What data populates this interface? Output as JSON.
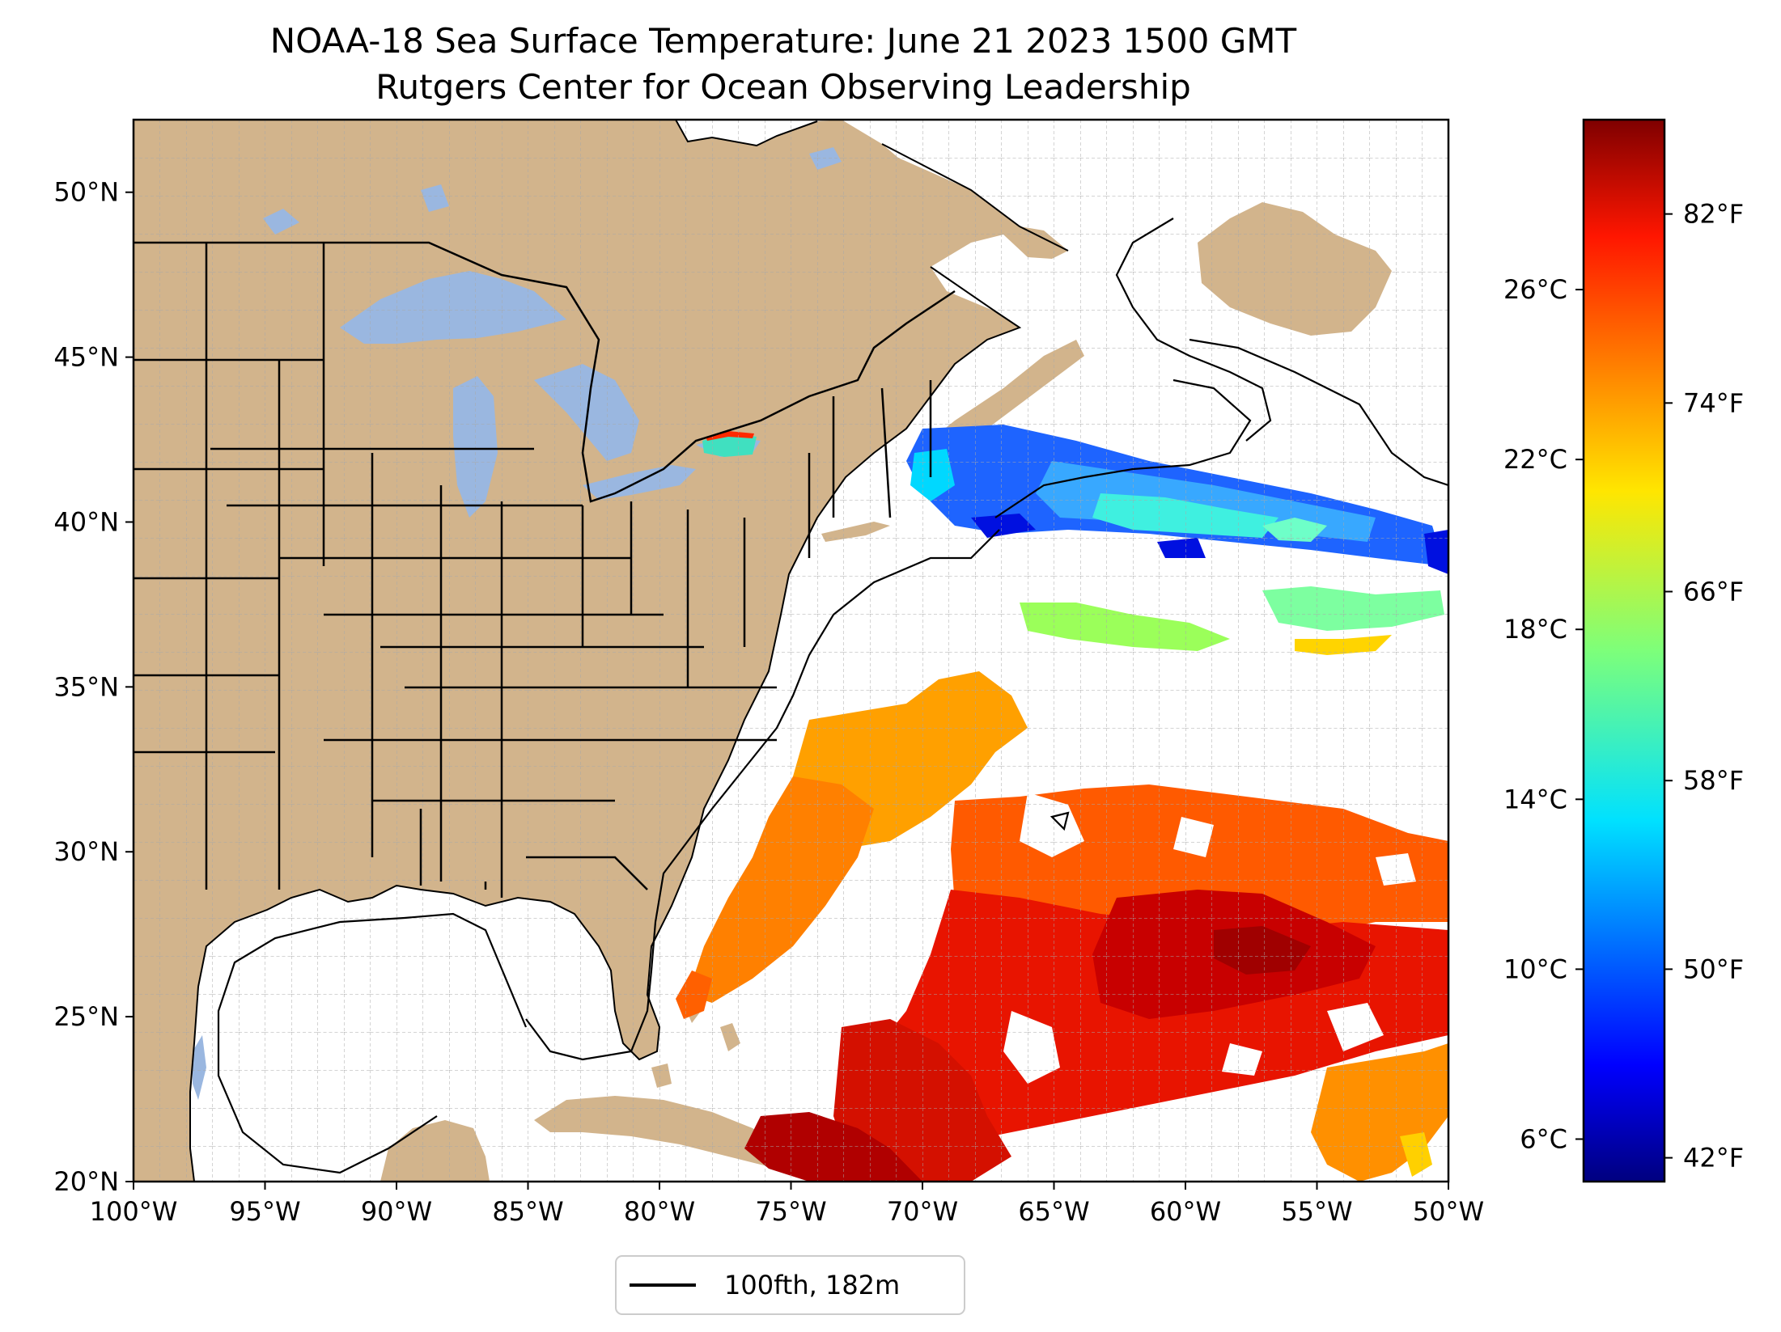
{
  "title": {
    "line1": "NOAA-18 Sea Surface Temperature: June 21 2023 1500 GMT",
    "line2": "Rutgers Center for Ocean Observing Leadership"
  },
  "map": {
    "lon_range": [
      -100,
      -50
    ],
    "lat_range": [
      20,
      52.2
    ],
    "lon_ticks": [
      {
        "value": -100,
        "label": "100°W"
      },
      {
        "value": -95,
        "label": "95°W"
      },
      {
        "value": -90,
        "label": "90°W"
      },
      {
        "value": -85,
        "label": "85°W"
      },
      {
        "value": -80,
        "label": "80°W"
      },
      {
        "value": -75,
        "label": "75°W"
      },
      {
        "value": -70,
        "label": "70°W"
      },
      {
        "value": -65,
        "label": "65°W"
      },
      {
        "value": -60,
        "label": "60°W"
      },
      {
        "value": -55,
        "label": "55°W"
      },
      {
        "value": -50,
        "label": "50°W"
      }
    ],
    "lat_ticks": [
      {
        "value": 20,
        "label": "20°N"
      },
      {
        "value": 25,
        "label": "25°N"
      },
      {
        "value": 30,
        "label": "30°N"
      },
      {
        "value": 35,
        "label": "35°N"
      },
      {
        "value": 40,
        "label": "40°N"
      },
      {
        "value": 45,
        "label": "45°N"
      },
      {
        "value": 50,
        "label": "50°N"
      }
    ],
    "gridlines": "dashed, every 1 degree",
    "colors": {
      "land": "#d2b48c",
      "lakes": "#9ab7e0",
      "no_data": "#ffffff",
      "borders": "#000000"
    }
  },
  "legend": {
    "label": "100fth, 182m",
    "placement": "bottom-center"
  },
  "colorbar": {
    "colormap": "jet",
    "range_c": [
      5,
      30
    ],
    "celsius_ticks": [
      {
        "value": 6,
        "label": "6°C"
      },
      {
        "value": 10,
        "label": "10°C"
      },
      {
        "value": 14,
        "label": "14°C"
      },
      {
        "value": 18,
        "label": "18°C"
      },
      {
        "value": 22,
        "label": "22°C"
      },
      {
        "value": 26,
        "label": "26°C"
      }
    ],
    "fahrenheit_ticks": [
      {
        "value_c": 5.56,
        "label": "42°F"
      },
      {
        "value_c": 10.0,
        "label": "50°F"
      },
      {
        "value_c": 14.44,
        "label": "58°F"
      },
      {
        "value_c": 18.89,
        "label": "66°F"
      },
      {
        "value_c": 23.33,
        "label": "74°F"
      },
      {
        "value_c": 27.78,
        "label": "82°F"
      }
    ]
  }
}
